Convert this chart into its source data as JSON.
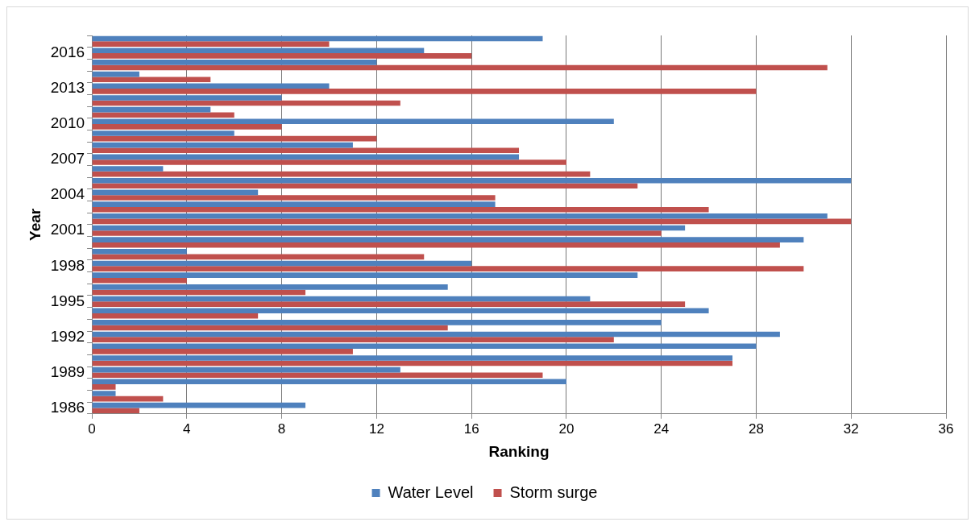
{
  "chart_data": {
    "type": "bar",
    "orientation": "horizontal",
    "xlabel": "Ranking",
    "ylabel": "Year",
    "categories": [
      null,
      "2016",
      null,
      null,
      "2013",
      null,
      null,
      "2010",
      null,
      null,
      "2007",
      null,
      null,
      "2004",
      null,
      null,
      "2001",
      null,
      null,
      "1998",
      null,
      null,
      "1995",
      null,
      null,
      "1992",
      null,
      null,
      "1989",
      null,
      null,
      "1986"
    ],
    "series": [
      {
        "name": "Water Level",
        "color": "#4f81bd",
        "values": [
          19,
          14,
          12,
          2,
          10,
          8,
          5,
          22,
          6,
          11,
          18,
          3,
          32,
          7,
          17,
          31,
          25,
          30,
          4,
          16,
          23,
          15,
          21,
          26,
          24,
          29,
          28,
          27,
          13,
          20,
          1,
          9
        ]
      },
      {
        "name": "Storm surge",
        "color": "#c0504d",
        "values": [
          10,
          16,
          31,
          5,
          28,
          13,
          6,
          8,
          12,
          18,
          20,
          21,
          23,
          17,
          26,
          32,
          24,
          29,
          14,
          30,
          4,
          9,
          25,
          7,
          15,
          22,
          11,
          27,
          19,
          1,
          3,
          2
        ]
      }
    ],
    "xlim": [
      0,
      36
    ],
    "xticks": [
      0,
      4,
      8,
      12,
      16,
      20,
      24,
      28,
      32,
      36
    ],
    "grid": "x",
    "legend": "bottom"
  }
}
